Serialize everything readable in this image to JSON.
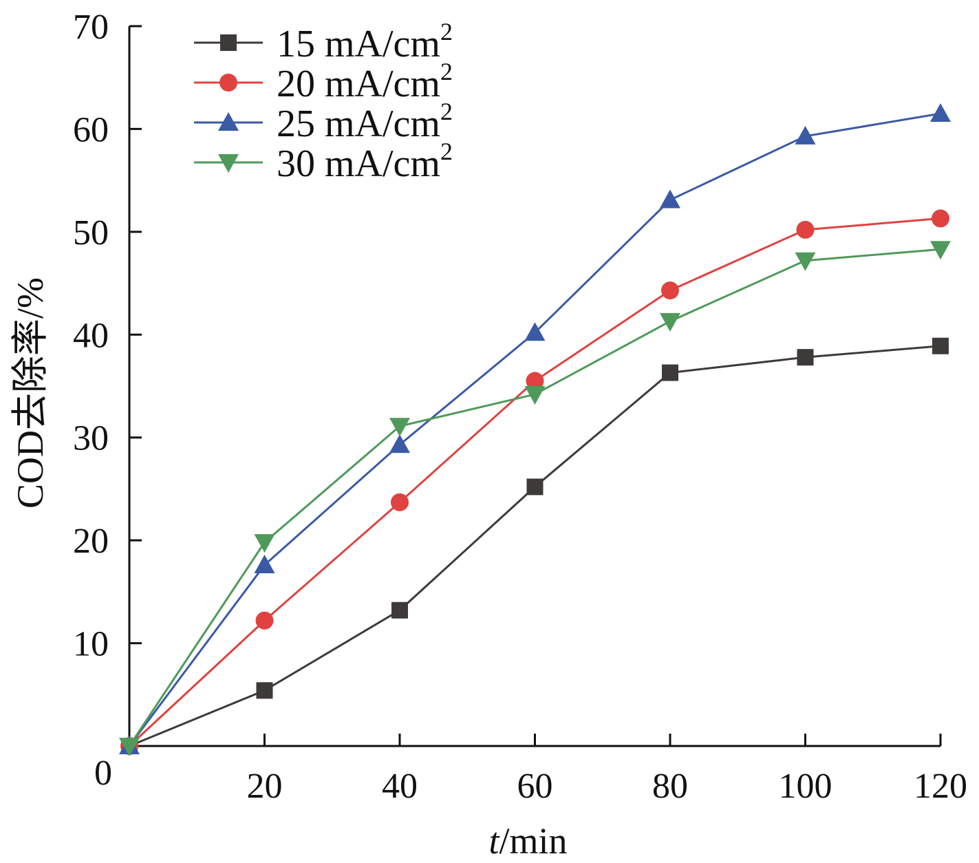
{
  "chart_data": {
    "type": "line",
    "title": "",
    "xlabel_italic": "t",
    "xlabel_rest": "/min",
    "ylabel": "COD去除率/%",
    "xlim": [
      0,
      120
    ],
    "ylim": [
      0,
      70
    ],
    "xticks": [
      20,
      40,
      60,
      80,
      100,
      120
    ],
    "yticks": [
      10,
      20,
      30,
      40,
      50,
      60,
      70
    ],
    "origin_label": "0",
    "grid": false,
    "legend_position": "top-left",
    "x": [
      0,
      20,
      40,
      60,
      80,
      100,
      120
    ],
    "series": [
      {
        "name": "15 mA/cm",
        "sup": "2",
        "color": "#3f3a3a",
        "marker": "square",
        "values": [
          0,
          5.4,
          13.2,
          25.2,
          36.3,
          37.8,
          38.9
        ]
      },
      {
        "name": "20 mA/cm",
        "sup": "2",
        "color": "#e0423f",
        "marker": "circle",
        "values": [
          0,
          12.2,
          23.7,
          35.5,
          44.3,
          50.2,
          51.3
        ]
      },
      {
        "name": "25 mA/cm",
        "sup": "2",
        "color": "#3a5aa6",
        "marker": "triangle-up",
        "values": [
          0,
          17.6,
          29.3,
          40.2,
          53.1,
          59.3,
          61.5
        ]
      },
      {
        "name": "30 mA/cm",
        "sup": "2",
        "color": "#4f9a5a",
        "marker": "triangle-down",
        "values": [
          0,
          19.8,
          31.1,
          34.2,
          41.3,
          47.2,
          48.3
        ]
      }
    ]
  }
}
